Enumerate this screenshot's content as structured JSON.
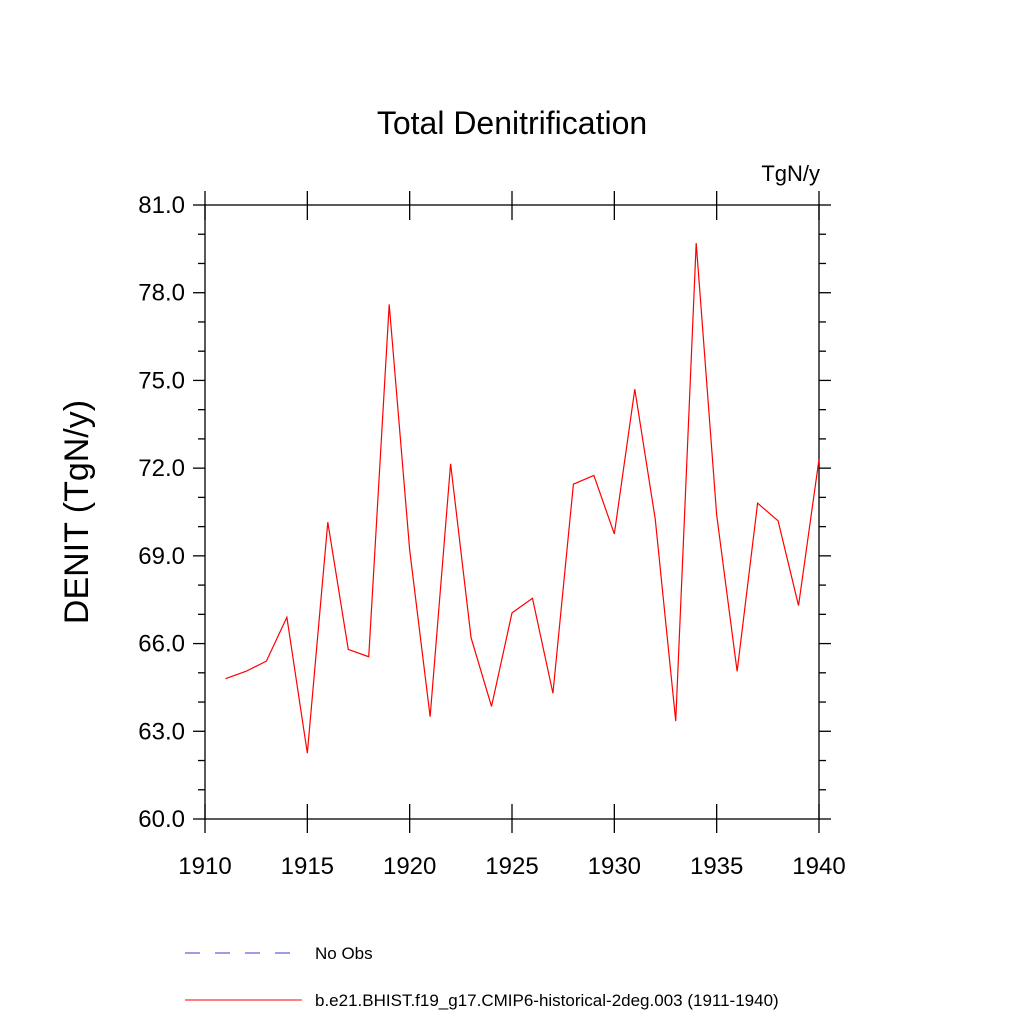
{
  "chart_data": {
    "type": "line",
    "title": "Total Denitrification",
    "units_label": "TgN/y",
    "ylabel": "DENIT  (TgN/y)",
    "xlabel": "",
    "xlim": [
      1910,
      1940
    ],
    "ylim": [
      60.0,
      81.0
    ],
    "x_ticks": [
      "1910",
      "1915",
      "1920",
      "1925",
      "1930",
      "1935",
      "1940"
    ],
    "y_ticks": [
      "60.0",
      "63.0",
      "66.0",
      "69.0",
      "72.0",
      "75.0",
      "78.0",
      "81.0"
    ],
    "grid": false,
    "legend_position": "bottom",
    "series": [
      {
        "name": "No Obs",
        "color": "#3b3bcc",
        "dashed": true,
        "x": [],
        "values": []
      },
      {
        "name": "b.e21.BHIST.f19_g17.CMIP6-historical-2deg.003 (1911-1940)",
        "color": "#ff0000",
        "dashed": false,
        "x": [
          1911,
          1912,
          1913,
          1914,
          1915,
          1916,
          1917,
          1918,
          1919,
          1920,
          1921,
          1922,
          1923,
          1924,
          1925,
          1926,
          1927,
          1928,
          1929,
          1930,
          1931,
          1932,
          1933,
          1934,
          1935,
          1936,
          1937,
          1938,
          1939,
          1940
        ],
        "values": [
          64.8,
          65.05,
          65.4,
          66.9,
          62.25,
          70.15,
          65.8,
          65.55,
          77.6,
          69.2,
          63.5,
          72.15,
          66.2,
          63.85,
          67.05,
          67.55,
          64.3,
          71.45,
          71.75,
          69.75,
          74.7,
          70.25,
          63.35,
          79.7,
          70.4,
          65.05,
          70.8,
          70.2,
          67.3,
          72.3
        ]
      }
    ]
  }
}
